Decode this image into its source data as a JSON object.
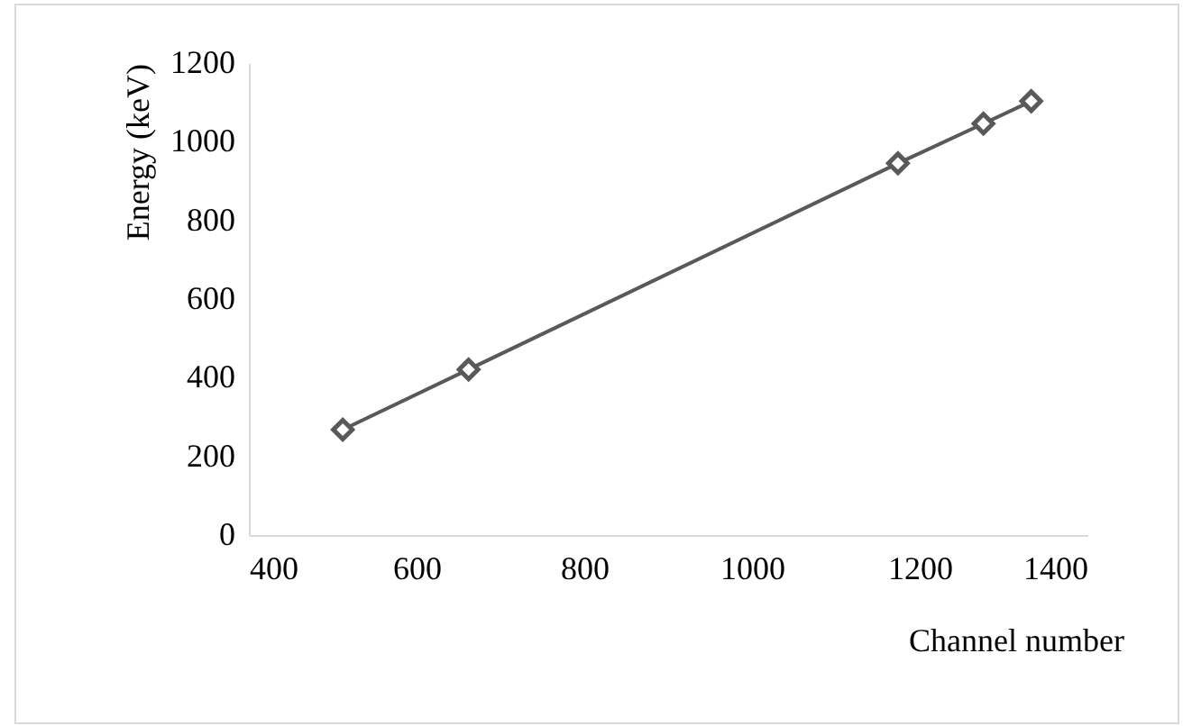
{
  "chart_data": {
    "type": "line",
    "xlabel": "Channel number",
    "ylabel": "Energy (keV)",
    "x": [
      512,
      662,
      1174,
      1276,
      1333
    ],
    "series": [
      {
        "color": "#595959",
        "values": [
          268,
          421,
          945,
          1046,
          1103
        ]
      }
    ],
    "xlim": [
      400,
      1400
    ],
    "xticks": [
      400,
      600,
      800,
      1000,
      1200,
      1400
    ],
    "ylim": [
      0,
      1200
    ],
    "yticks": [
      0,
      200,
      400,
      600,
      800,
      1000,
      1200
    ],
    "grid": false,
    "marker": "diamond",
    "line_style": "solid"
  }
}
